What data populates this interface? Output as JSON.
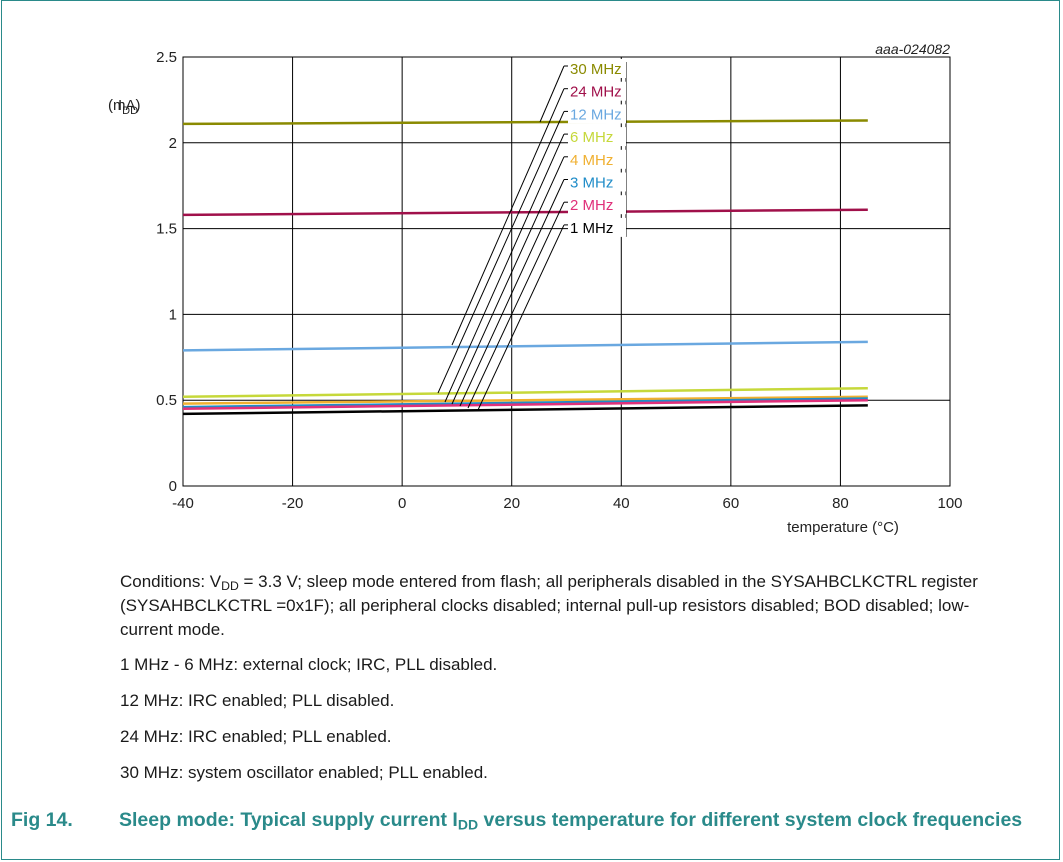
{
  "figure": {
    "number": "Fig 14.",
    "title_pre": "Sleep mode: Typical supply current I",
    "title_sub": "DD",
    "title_post": " versus temperature for different system clock frequencies",
    "code": "aaa-024082"
  },
  "conditions": {
    "line1_pre": "Conditions: V",
    "line1_sub": "DD",
    "line1_post": " = 3.3 V; sleep mode entered from flash; all peripherals disabled in the SYSAHBCLKCTRL register (SYSAHBCLKCTRL =0x1F); all peripheral clocks disabled; internal pull-up resistors disabled; BOD disabled; low-current mode.",
    "line2": "1 MHz - 6 MHz: external clock; IRC, PLL disabled.",
    "line3": "12 MHz: IRC enabled; PLL disabled.",
    "line4": "24 MHz: IRC enabled; PLL enabled.",
    "line5": "30 MHz: system oscillator enabled; PLL enabled."
  },
  "chart_data": {
    "type": "line",
    "ylabel_main": "I",
    "ylabel_sub": "DD",
    "ylabel_unit": "(mA)",
    "xlabel": "temperature (°C)",
    "xlim": [
      -40,
      100
    ],
    "ylim": [
      0,
      2.5
    ],
    "x_ticks": [
      "-40",
      "-20",
      "0",
      "20",
      "40",
      "60",
      "80",
      "100"
    ],
    "y_ticks": [
      "0",
      "0.5",
      "1",
      "1.5",
      "2",
      "2.5"
    ],
    "grid": true,
    "x": [
      -40,
      85
    ],
    "series": [
      {
        "name": "30 MHz",
        "color": "#8a8a00",
        "values": [
          2.11,
          2.13
        ]
      },
      {
        "name": "24 MHz",
        "color": "#a0104a",
        "values": [
          1.58,
          1.61
        ]
      },
      {
        "name": "12 MHz",
        "color": "#6aa8e0",
        "values": [
          0.79,
          0.84
        ]
      },
      {
        "name": "6 MHz",
        "color": "#c6d83a",
        "values": [
          0.52,
          0.57
        ]
      },
      {
        "name": "4 MHz",
        "color": "#f0b030",
        "values": [
          0.48,
          0.52
        ]
      },
      {
        "name": "3 MHz",
        "color": "#1f8cc8",
        "values": [
          0.46,
          0.51
        ]
      },
      {
        "name": "2 MHz",
        "color": "#e0307a",
        "values": [
          0.45,
          0.5
        ]
      },
      {
        "name": "1 MHz",
        "color": "#000000",
        "values": [
          0.42,
          0.47
        ]
      }
    ]
  }
}
